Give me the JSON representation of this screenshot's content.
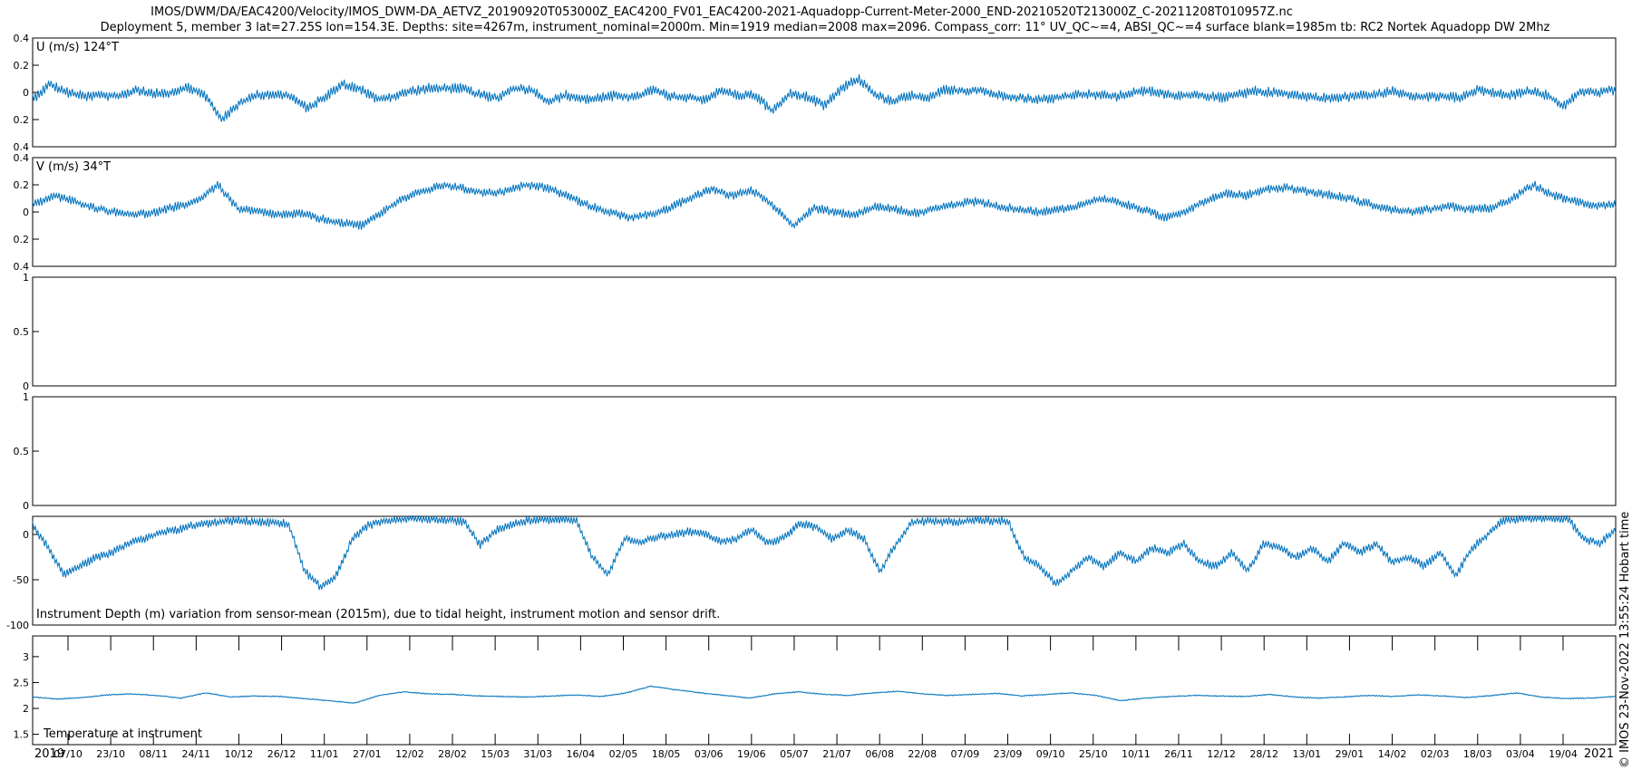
{
  "title_lines": [
    "IMOS/DWM/DA/EAC4200/Velocity/IMOS_DWM-DA_AETVZ_20190920T053000Z_EAC4200_FV01_EAC4200-2021-Aquadopp-Current-Meter-2000_END-20210520T213000Z_C-20211208T010957Z.nc",
    "Deployment 5, member 3 lat=27.25S lon=154.3E. Depths: site=4267m, instrument_nominal=2000m. Min=1919 median=2008 max=2096. Compass_corr: 11° UV_QC~=4, ABSI_QC~=4 surface blank=1985m tb: RC2 Nortek Aquadopp DW 2Mhz"
  ],
  "stamp": "© IMOS 23-Nov-2022 13:55:24 Hobart time",
  "colors": {
    "series": "#0072bd",
    "axes": "#000000"
  },
  "x_axis": {
    "tick_labels": [
      "07/10",
      "23/10",
      "08/11",
      "24/11",
      "10/12",
      "26/12",
      "11/01",
      "27/01",
      "12/02",
      "28/02",
      "15/03",
      "31/03",
      "16/04",
      "02/05",
      "18/05",
      "03/06",
      "19/06",
      "05/07",
      "21/07",
      "06/08",
      "22/08",
      "07/09",
      "23/09",
      "09/10",
      "25/10",
      "10/11",
      "26/11",
      "12/12",
      "28/12",
      "13/01",
      "29/01",
      "14/02",
      "02/03",
      "18/03",
      "03/04",
      "19/04"
    ],
    "start_year_label": "2019",
    "end_year_label": "2021",
    "start": "2019-09-20T05:30",
    "end": "2021-05-20T21:30"
  },
  "chart_data": [
    {
      "type": "line",
      "title": "U (m/s) 124°T",
      "ylim": [
        -0.4,
        0.4
      ],
      "yticks": [
        "0.4",
        "0.2",
        "0",
        "0.2",
        "0.4"
      ],
      "grid": false,
      "series": [
        {
          "values": [
            -0.05,
            0.06,
            0.0,
            -0.03,
            -0.02,
            -0.03,
            0.02,
            -0.01,
            0.0,
            0.04,
            -0.02,
            -0.2,
            -0.08,
            -0.02,
            -0.01,
            -0.03,
            -0.12,
            -0.03,
            0.06,
            0.03,
            -0.05,
            -0.03,
            0.01,
            0.03,
            0.03,
            0.03,
            -0.02,
            -0.04,
            0.03,
            0.02,
            -0.07,
            -0.02,
            -0.05,
            -0.04,
            -0.02,
            -0.04,
            0.02,
            -0.03,
            -0.04,
            -0.05,
            0.01,
            -0.02,
            -0.02,
            -0.14,
            -0.01,
            -0.03,
            -0.1,
            0.03,
            0.1,
            -0.02,
            -0.07,
            -0.02,
            -0.05,
            0.02,
            0.01,
            0.02,
            -0.02,
            -0.03,
            -0.05,
            -0.05,
            -0.03,
            -0.01,
            -0.02,
            -0.03,
            0.0,
            0.01,
            -0.02,
            -0.02,
            -0.02,
            -0.04,
            -0.02,
            0.01,
            0.0,
            -0.01,
            -0.03,
            -0.04,
            -0.04,
            -0.02,
            -0.02,
            0.01,
            -0.02,
            -0.03,
            -0.03,
            -0.04,
            0.02,
            -0.01,
            -0.02,
            0.01,
            -0.02,
            -0.1,
            0.01,
            0.0,
            0.02
          ]
        }
      ]
    },
    {
      "type": "line",
      "title": "V (m/s) 34°T",
      "ylim": [
        -0.4,
        0.4
      ],
      "yticks": [
        "0.4",
        "0.2",
        "0",
        "0.2",
        "0.4"
      ],
      "grid": false,
      "series": [
        {
          "values": [
            0.05,
            0.12,
            0.08,
            0.03,
            0.0,
            -0.02,
            0.0,
            0.04,
            0.08,
            0.2,
            0.02,
            0.0,
            -0.02,
            -0.01,
            -0.05,
            -0.08,
            -0.1,
            0.0,
            0.1,
            0.15,
            0.2,
            0.17,
            0.14,
            0.15,
            0.2,
            0.18,
            0.12,
            0.05,
            0.0,
            -0.04,
            -0.02,
            0.03,
            0.1,
            0.17,
            0.12,
            0.16,
            0.05,
            -0.1,
            0.03,
            0.0,
            -0.02,
            0.04,
            0.02,
            -0.01,
            0.03,
            0.06,
            0.08,
            0.04,
            0.02,
            0.0,
            0.02,
            0.05,
            0.1,
            0.06,
            0.02,
            -0.04,
            0.0,
            0.08,
            0.14,
            0.12,
            0.17,
            0.18,
            0.15,
            0.13,
            0.1,
            0.06,
            0.02,
            0.0,
            0.02,
            0.04,
            0.02,
            0.03,
            0.1,
            0.2,
            0.12,
            0.08,
            0.05,
            0.06
          ]
        }
      ]
    },
    {
      "type": "line",
      "title": "",
      "ylim": [
        0,
        1
      ],
      "yticks": [
        "1",
        "0.5",
        "0"
      ],
      "grid": false,
      "series": []
    },
    {
      "type": "line",
      "title": "",
      "ylim": [
        0,
        1
      ],
      "yticks": [
        "1",
        "0.5",
        "0"
      ],
      "grid": false,
      "series": []
    },
    {
      "type": "line",
      "title": "Instrument Depth (m) variation from sensor-mean (2015m), due to tidal height, instrument motion and sensor drift.",
      "ylim": [
        -100,
        20
      ],
      "yticks": [
        "0",
        "-50",
        "-100"
      ],
      "grid": false,
      "series": [
        {
          "values": [
            10,
            -15,
            -45,
            -35,
            -25,
            -20,
            -10,
            -5,
            2,
            5,
            10,
            12,
            15,
            15,
            14,
            13,
            12,
            -40,
            -58,
            -45,
            -5,
            10,
            15,
            17,
            18,
            17,
            16,
            14,
            -12,
            5,
            12,
            15,
            16,
            17,
            16,
            -25,
            -45,
            -5,
            -8,
            -3,
            0,
            3,
            2,
            -8,
            -5,
            5,
            -10,
            -3,
            12,
            8,
            -5,
            5,
            -5,
            -40,
            -10,
            13,
            15,
            14,
            14,
            16,
            15,
            15,
            -25,
            -35,
            -55,
            -40,
            -25,
            -35,
            -20,
            -30,
            -15,
            -20,
            -10,
            -30,
            -35,
            -20,
            -40,
            -10,
            -15,
            -25,
            -15,
            -30,
            -10,
            -20,
            -10,
            -30,
            -25,
            -35,
            -20,
            -45,
            -15,
            0,
            16,
            17,
            18,
            17,
            18,
            -5,
            -10,
            5
          ]
        }
      ]
    },
    {
      "type": "line",
      "title": "Temperature at instrument",
      "ylim": [
        1.3,
        3.4
      ],
      "yticks": [
        "3",
        "2.5",
        "2",
        "1.5"
      ],
      "grid": false,
      "series": [
        {
          "values": [
            2.22,
            2.18,
            2.21,
            2.26,
            2.28,
            2.25,
            2.2,
            2.3,
            2.22,
            2.24,
            2.23,
            2.19,
            2.15,
            2.1,
            2.25,
            2.32,
            2.28,
            2.27,
            2.24,
            2.23,
            2.22,
            2.24,
            2.26,
            2.23,
            2.3,
            2.43,
            2.36,
            2.3,
            2.25,
            2.2,
            2.28,
            2.32,
            2.27,
            2.25,
            2.3,
            2.33,
            2.28,
            2.25,
            2.27,
            2.29,
            2.24,
            2.27,
            2.3,
            2.25,
            2.15,
            2.2,
            2.23,
            2.25,
            2.24,
            2.23,
            2.27,
            2.22,
            2.2,
            2.22,
            2.25,
            2.23,
            2.26,
            2.24,
            2.21,
            2.25,
            2.3,
            2.22,
            2.19,
            2.2,
            2.23
          ]
        }
      ]
    }
  ]
}
